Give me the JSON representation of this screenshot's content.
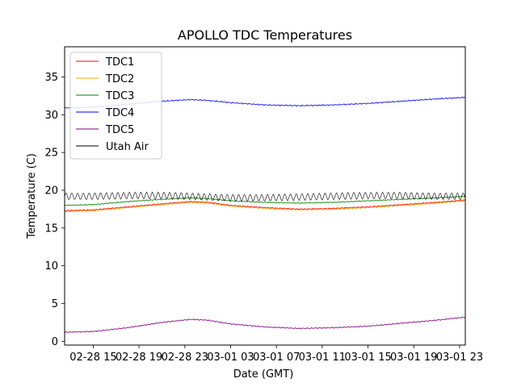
{
  "chart_data": {
    "type": "line",
    "title": "APOLLO TDC Temperatures",
    "xlabel": "Date (GMT)",
    "ylabel": "Temperature (C)",
    "xlim": [
      12.5,
      47.5
    ],
    "ylim": [
      -0.5,
      39
    ],
    "x_unit": "hours since 02-28 00:00 GMT",
    "xticks": [
      {
        "value": 15,
        "label": "02-28 15"
      },
      {
        "value": 19,
        "label": "02-28 19"
      },
      {
        "value": 23,
        "label": "02-28 23"
      },
      {
        "value": 27,
        "label": "03-01 03"
      },
      {
        "value": 31,
        "label": "03-01 07"
      },
      {
        "value": 35,
        "label": "03-01 11"
      },
      {
        "value": 39,
        "label": "03-01 15"
      },
      {
        "value": 43,
        "label": "03-01 19"
      },
      {
        "value": 47,
        "label": "03-01 23"
      }
    ],
    "yticks": [
      0,
      5,
      10,
      15,
      20,
      25,
      30,
      35
    ],
    "grid": false,
    "legend_position": "top-left",
    "series": [
      {
        "name": "TDC1",
        "color": "#ff0000",
        "x": [
          12.5,
          15,
          18,
          21,
          23.5,
          25,
          27,
          30,
          33,
          36,
          39,
          42,
          45,
          47.5
        ],
        "y": [
          17.3,
          17.4,
          17.8,
          18.2,
          18.5,
          18.4,
          18.0,
          17.7,
          17.5,
          17.6,
          17.8,
          18.1,
          18.4,
          18.7
        ]
      },
      {
        "name": "TDC2",
        "color": "#ffa500",
        "x": [
          12.5,
          15,
          18,
          21,
          23.5,
          25,
          27,
          30,
          33,
          36,
          39,
          42,
          45,
          47.5
        ],
        "y": [
          17.2,
          17.3,
          17.7,
          18.1,
          18.4,
          18.3,
          17.9,
          17.6,
          17.4,
          17.5,
          17.7,
          18.0,
          18.3,
          18.6
        ]
      },
      {
        "name": "TDC3",
        "color": "#008000",
        "x": [
          12.5,
          15,
          18,
          21,
          23.5,
          25,
          27,
          30,
          33,
          36,
          39,
          42,
          45,
          47.5
        ],
        "y": [
          18.0,
          18.1,
          18.5,
          18.8,
          19.0,
          18.9,
          18.6,
          18.4,
          18.3,
          18.4,
          18.6,
          18.8,
          19.0,
          19.2
        ]
      },
      {
        "name": "TDC4",
        "color": "#0000ff",
        "x": [
          12.5,
          15,
          18,
          21,
          23.5,
          25,
          27,
          30,
          33,
          36,
          39,
          42,
          45,
          47.5
        ],
        "y": [
          30.9,
          31.0,
          31.4,
          31.8,
          32.0,
          31.9,
          31.6,
          31.3,
          31.2,
          31.3,
          31.5,
          31.8,
          32.1,
          32.3
        ]
      },
      {
        "name": "TDC5",
        "color": "#800080",
        "x": [
          12.5,
          15,
          18,
          21,
          23.5,
          25,
          27,
          30,
          33,
          36,
          39,
          42,
          45,
          47.5
        ],
        "y": [
          1.2,
          1.3,
          1.8,
          2.5,
          2.9,
          2.8,
          2.3,
          1.9,
          1.7,
          1.8,
          2.0,
          2.4,
          2.8,
          3.2
        ]
      },
      {
        "name": "Utah Air",
        "color": "#000000",
        "x": [
          12.5,
          15,
          18,
          21,
          23.5,
          25,
          27,
          30,
          33,
          36,
          39,
          42,
          45,
          47.5
        ],
        "y": [
          19.2,
          19.2,
          19.3,
          19.3,
          19.2,
          19.1,
          19.0,
          19.0,
          19.1,
          19.2,
          19.3,
          19.3,
          19.2,
          19.2
        ]
      }
    ]
  }
}
